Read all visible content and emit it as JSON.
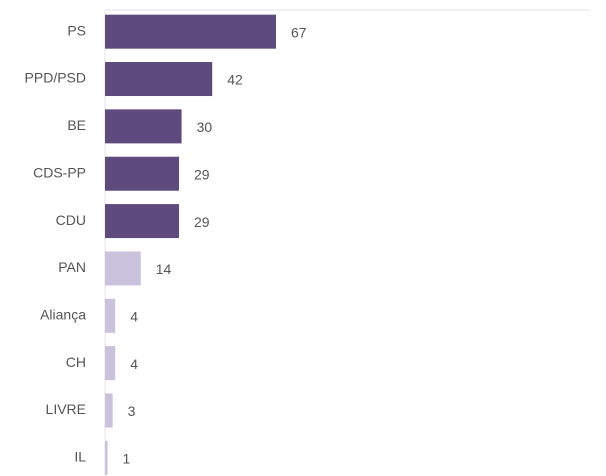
{
  "chart_data": {
    "type": "hbar",
    "categories": [
      "PS",
      "PPD/PSD",
      "BE",
      "CDS-PP",
      "CDU",
      "PAN",
      "Aliança",
      "CH",
      "LIVRE",
      "IL"
    ],
    "values": [
      67,
      42,
      30,
      29,
      29,
      14,
      4,
      4,
      3,
      1
    ],
    "colors": [
      "#5e4a7d",
      "#5e4a7d",
      "#5e4a7d",
      "#5e4a7d",
      "#5e4a7d",
      "#cac1dd",
      "#cac1dd",
      "#cac1dd",
      "#cac1dd",
      "#cac1dd"
    ],
    "xlim": [
      0,
      190
    ]
  }
}
